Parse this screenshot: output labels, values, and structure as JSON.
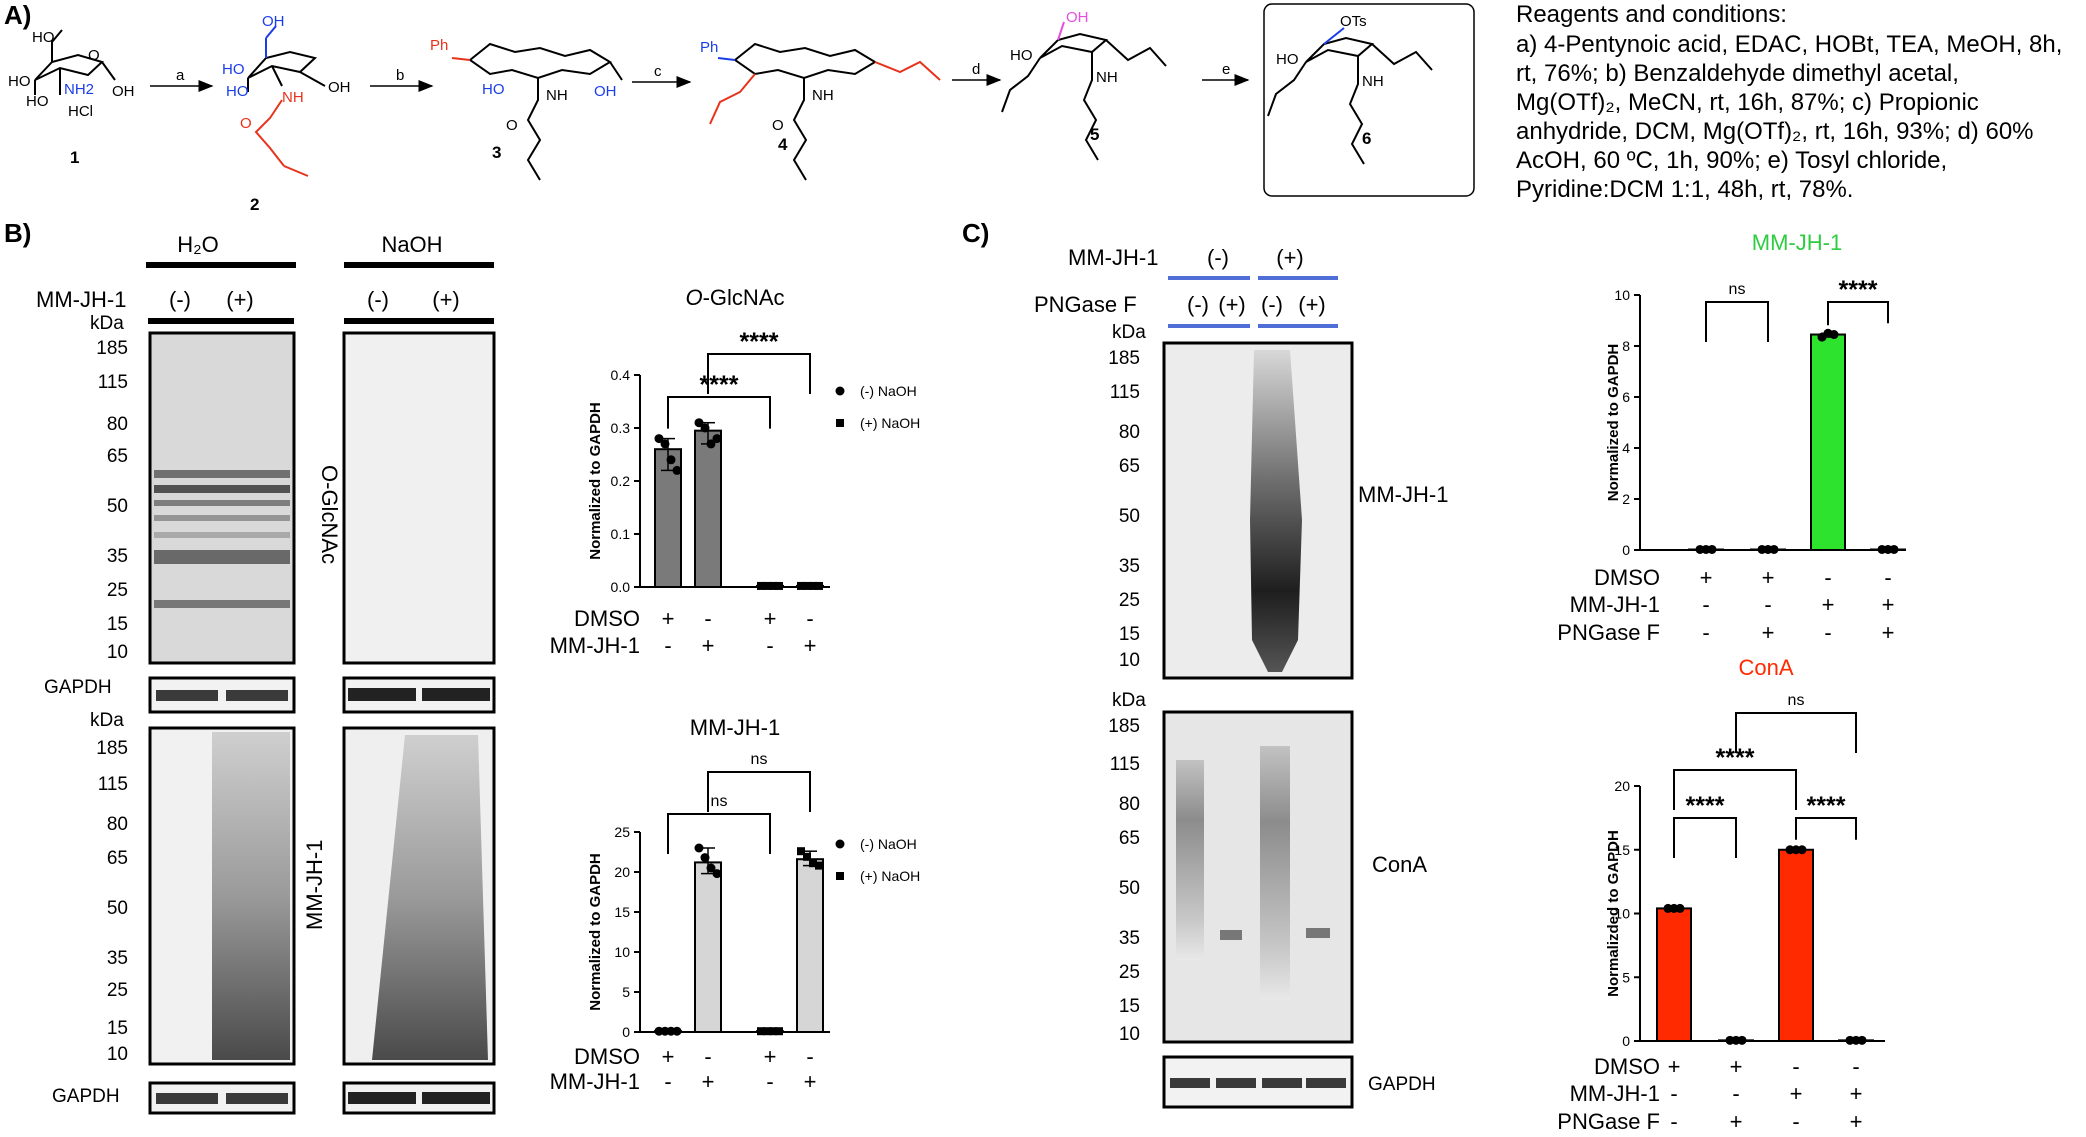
{
  "panels": {
    "a": "A)",
    "b": "B)",
    "c": "C)"
  },
  "scheme": {
    "compounds": [
      "1",
      "2",
      "3",
      "4",
      "5",
      "6"
    ],
    "arrows": [
      "a",
      "b",
      "c",
      "d",
      "e"
    ],
    "atoms": {
      "ho": "HO",
      "oh": "OH",
      "nh": "NH",
      "nh2": "NH2",
      "hcl": "HCl",
      "o": "O",
      "ph": "Ph",
      "ots": "OTs"
    },
    "reagents_title": "Reagents and conditions:",
    "reagents_lines": [
      "a) 4-Pentynoic acid, EDAC, HOBt, TEA, MeOH, 8h,",
      "rt, 76%; b) Benzaldehyde dimethyl acetal,",
      "Mg(OTf)₂, MeCN, rt, 16h, 87%; c) Propionic",
      "anhydride, DCM, Mg(OTf)₂, rt, 16h, 93%; d) 60%",
      "AcOH, 60 ºC, 1h, 90%; e) Tosyl chloride,",
      "Pyridine:DCM 1:1, 48h, rt, 78%."
    ]
  },
  "panel_b": {
    "group_h2o": "H₂O",
    "group_naoh": "NaOH",
    "mm_label": "MM-JH-1",
    "minus": "(-)",
    "plus": "(+)",
    "kda": "kDa",
    "markers": [
      "185",
      "115",
      "80",
      "65",
      "50",
      "35",
      "25",
      "15",
      "10"
    ],
    "blot_ogl_label": "O-GlcNAc",
    "blot_mm_label": "MM-JH-1",
    "gapdh": "GAPDH"
  },
  "panel_c": {
    "mm_label": "MM-JH-1",
    "png_label": "PNGase F",
    "minus": "(-)",
    "plus": "(+)",
    "kda": "kDa",
    "markers": [
      "185",
      "115",
      "80",
      "65",
      "50",
      "35",
      "25",
      "15",
      "10"
    ],
    "blot_top_label": "MM-JH-1",
    "blot_mid_label": "ConA",
    "gapdh": "GAPDH"
  },
  "chart_data": [
    {
      "id": "ogl",
      "type": "bar",
      "title": "O-GlcNAc",
      "ylabel": "Normalized to GAPDH",
      "ylim": [
        0,
        0.4
      ],
      "yticks": [
        "0.0",
        "0.1",
        "0.2",
        "0.3",
        "0.4"
      ],
      "series": [
        {
          "name": "(-) NaOH",
          "values": [
            0.26,
            0.295,
            null,
            null
          ]
        },
        {
          "name": "(+) NaOH",
          "values": [
            null,
            null,
            0.002,
            0.002
          ]
        }
      ],
      "bar_colors": [
        "#7a7a7a",
        "#7a7a7a",
        "#7a7a7a",
        "#7a7a7a"
      ],
      "points": [
        [
          0.28,
          0.27,
          0.24,
          0.22
        ],
        [
          0.31,
          0.3,
          0.27,
          0.28
        ],
        [
          0.002,
          0.002,
          0.002,
          0.002
        ],
        [
          0.002,
          0.002,
          0.002,
          0.002
        ]
      ],
      "conditions": [
        {
          "name": "DMSO",
          "values": [
            "+",
            "-",
            "+",
            "-"
          ]
        },
        {
          "name": "MM-JH-1",
          "values": [
            "-",
            "+",
            "-",
            "+"
          ]
        }
      ],
      "comparisons": [
        {
          "from": 0,
          "to": 2,
          "label": "****"
        },
        {
          "from": 1,
          "to": 3,
          "label": "****"
        }
      ],
      "legend": "right"
    },
    {
      "id": "mm",
      "type": "bar",
      "title": "MM-JH-1",
      "ylabel": "Normalized to GAPDH",
      "ylim": [
        0,
        25
      ],
      "yticks": [
        "0",
        "5",
        "10",
        "15",
        "20",
        "25"
      ],
      "series": [
        {
          "name": "(-) NaOH",
          "values": [
            0.1,
            21.2,
            null,
            null
          ]
        },
        {
          "name": "(+) NaOH",
          "values": [
            null,
            null,
            0.1,
            21.6
          ]
        }
      ],
      "bar_colors": [
        "#d6d6d6",
        "#d6d6d6",
        "#d6d6d6",
        "#d6d6d6"
      ],
      "points": [
        [
          0.1,
          0.1,
          0.1,
          0.1
        ],
        [
          23.0,
          21.8,
          20.5,
          19.8
        ],
        [
          0.1,
          0.1,
          0.1,
          0.1
        ],
        [
          22.6,
          21.9,
          21.1,
          20.8
        ]
      ],
      "conditions": [
        {
          "name": "DMSO",
          "values": [
            "+",
            "-",
            "+",
            "-"
          ]
        },
        {
          "name": "MM-JH-1",
          "values": [
            "-",
            "+",
            "-",
            "+"
          ]
        }
      ],
      "comparisons": [
        {
          "from": 0,
          "to": 2,
          "label": "ns"
        },
        {
          "from": 1,
          "to": 3,
          "label": "ns"
        }
      ],
      "legend": "right"
    },
    {
      "id": "c1",
      "type": "bar",
      "title": "MM-JH-1",
      "title_color": "#2ecc40",
      "ylabel": "Normalized to GAPDH",
      "ylim": [
        0,
        10
      ],
      "yticks": [
        "0",
        "2",
        "4",
        "6",
        "8",
        "10"
      ],
      "values": [
        0.02,
        0.02,
        8.45,
        0.02
      ],
      "bar_colors": [
        "#2de32d",
        "#2de32d",
        "#2de32d",
        "#2de32d"
      ],
      "points": [
        [
          0.02,
          0.02,
          0.02
        ],
        [
          0.02,
          0.02,
          0.02
        ],
        [
          8.35,
          8.5,
          8.45
        ],
        [
          0.02,
          0.02,
          0.02
        ]
      ],
      "conditions": [
        {
          "name": "DMSO",
          "values": [
            "+",
            "+",
            "-",
            "-"
          ]
        },
        {
          "name": "MM-JH-1",
          "values": [
            "-",
            "-",
            "+",
            "+"
          ]
        },
        {
          "name": "PNGase F",
          "values": [
            "-",
            "+",
            "-",
            "+"
          ]
        }
      ],
      "comparisons": [
        {
          "from": 0,
          "to": 1,
          "label": "ns"
        },
        {
          "from": 2,
          "to": 3,
          "label": "****"
        }
      ]
    },
    {
      "id": "c2",
      "type": "bar",
      "title": "ConA",
      "title_color": "#ff2a00",
      "ylabel": "Normalizded to GAPDH",
      "ylim": [
        0,
        20
      ],
      "yticks": [
        "0",
        "5",
        "10",
        "15",
        "20"
      ],
      "values": [
        10.4,
        0.05,
        15.0,
        0.05
      ],
      "bar_colors": [
        "#ff2a00",
        "#ff2a00",
        "#ff2a00",
        "#ff2a00"
      ],
      "points": [
        [
          10.4,
          10.4,
          10.4
        ],
        [
          0.05,
          0.05,
          0.05
        ],
        [
          15.0,
          15.0,
          15.0
        ],
        [
          0.05,
          0.05,
          0.05
        ]
      ],
      "conditions": [
        {
          "name": "DMSO",
          "values": [
            "+",
            "+",
            "-",
            "-"
          ]
        },
        {
          "name": "MM-JH-1",
          "values": [
            "-",
            "-",
            "+",
            "+"
          ]
        },
        {
          "name": "PNGase F",
          "values": [
            "-",
            "+",
            "-",
            "+"
          ]
        }
      ],
      "comparisons": [
        {
          "from": 0,
          "to": 1,
          "label": "****"
        },
        {
          "from": 2,
          "to": 3,
          "label": "****"
        },
        {
          "from": 0,
          "to": 2,
          "label": "****"
        },
        {
          "from": 1,
          "to": 3,
          "label": "ns"
        }
      ]
    }
  ]
}
